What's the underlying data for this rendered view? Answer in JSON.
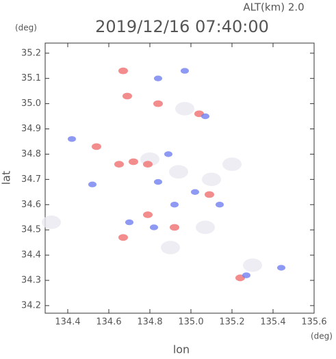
{
  "chart_data": {
    "type": "scatter",
    "title": "2019/12/16 07:40:00",
    "subtitle": "ALT(km) 2.0",
    "x_unit": "(deg)",
    "y_unit": "(deg)",
    "x_label": "lon",
    "y_label": "lat",
    "xlim": [
      134.29,
      135.6
    ],
    "ylim": [
      34.17,
      35.24
    ],
    "xticks": [
      134.4,
      134.6,
      134.8,
      {
        "value": 135.0,
        "label": "135.0"
      },
      135.2,
      135.4,
      135.6
    ],
    "yticks": [
      34.2,
      34.3,
      34.4,
      34.5,
      34.6,
      34.7,
      34.8,
      34.9,
      {
        "value": 35.0,
        "label": "35.0"
      },
      35.1,
      35.2
    ],
    "series": [
      {
        "color": "#e8e8f0",
        "x": [
          135.3,
          134.94,
          135.2,
          134.32,
          135.07,
          134.9,
          134.97,
          134.8,
          135.1
        ],
        "values": [
          34.36,
          34.73,
          34.76,
          34.53,
          34.51,
          34.43,
          34.98,
          34.78,
          34.7
        ]
      },
      {
        "color": "#f07070",
        "x": [
          134.69,
          134.67,
          134.65,
          134.72,
          134.79,
          134.67,
          135.24,
          135.09,
          134.84,
          135.04,
          134.92,
          134.54,
          134.79
        ],
        "values": [
          35.03,
          35.13,
          34.76,
          34.77,
          34.76,
          34.47,
          34.31,
          34.64,
          35.0,
          34.96,
          34.51,
          34.83,
          34.56
        ]
      },
      {
        "color": "#7080f0",
        "x": [
          134.42,
          134.84,
          134.97,
          135.07,
          134.84,
          134.89,
          134.82,
          134.7,
          135.02,
          135.27,
          135.44,
          135.14,
          134.92,
          134.52
        ],
        "values": [
          34.86,
          35.1,
          35.13,
          34.95,
          34.69,
          34.8,
          34.51,
          34.53,
          34.65,
          34.32,
          34.35,
          34.6,
          34.6,
          34.68
        ]
      }
    ]
  }
}
